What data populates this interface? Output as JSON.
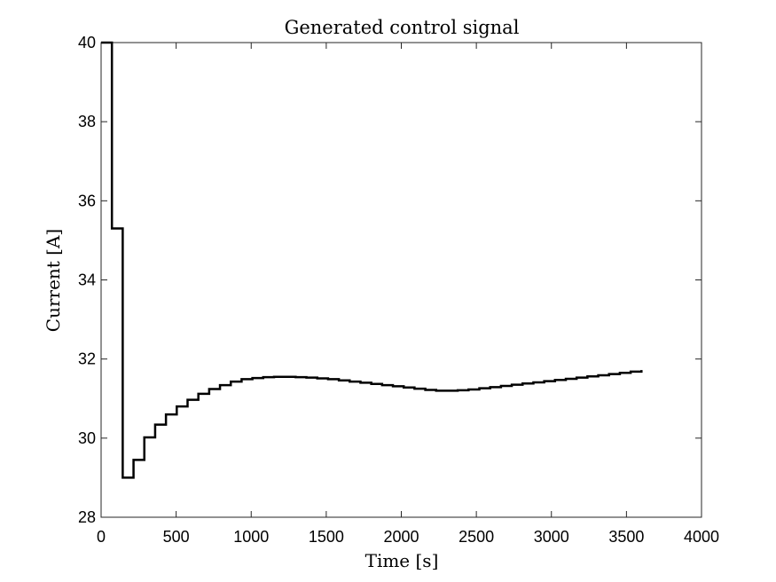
{
  "chart_data": {
    "type": "line",
    "title": "Generated control signal",
    "xlabel": "Time [s]",
    "ylabel": "Current [A]",
    "xlim": [
      0,
      4000
    ],
    "ylim": [
      28,
      40
    ],
    "xticks": [
      0,
      500,
      1000,
      1500,
      2000,
      2500,
      3000,
      3500,
      4000
    ],
    "yticks": [
      28,
      30,
      32,
      34,
      36,
      38,
      40
    ],
    "xtick_labels": [
      "0",
      "500",
      "1000",
      "1500",
      "2000",
      "2500",
      "3000",
      "3500",
      "4000"
    ],
    "ytick_labels": [
      "28",
      "30",
      "32",
      "34",
      "36",
      "38",
      "40"
    ],
    "grid": false,
    "legend": "none",
    "line_color": "#000000",
    "series": [
      {
        "step": "post",
        "x": [
          0,
          72,
          144,
          216,
          288,
          360,
          432,
          504,
          576,
          648,
          720,
          792,
          864,
          936,
          1008,
          1080,
          1152,
          1224,
          1296,
          1368,
          1440,
          1512,
          1584,
          1656,
          1728,
          1800,
          1872,
          1944,
          2016,
          2088,
          2160,
          2232,
          2304,
          2376,
          2448,
          2520,
          2592,
          2664,
          2736,
          2808,
          2880,
          2952,
          3024,
          3096,
          3168,
          3240,
          3312,
          3384,
          3456,
          3528,
          3600
        ],
        "values": [
          40,
          35.3,
          29.0,
          29.45,
          30.02,
          30.34,
          30.6,
          30.8,
          30.97,
          31.12,
          31.24,
          31.34,
          31.43,
          31.49,
          31.52,
          31.54,
          31.55,
          31.55,
          31.54,
          31.53,
          31.51,
          31.49,
          31.46,
          31.43,
          31.4,
          31.37,
          31.34,
          31.31,
          31.28,
          31.25,
          31.22,
          31.2,
          31.2,
          31.21,
          31.23,
          31.26,
          31.29,
          31.32,
          31.35,
          31.38,
          31.41,
          31.44,
          31.47,
          31.5,
          31.53,
          31.56,
          31.59,
          31.62,
          31.65,
          31.68,
          31.72
        ]
      }
    ]
  }
}
